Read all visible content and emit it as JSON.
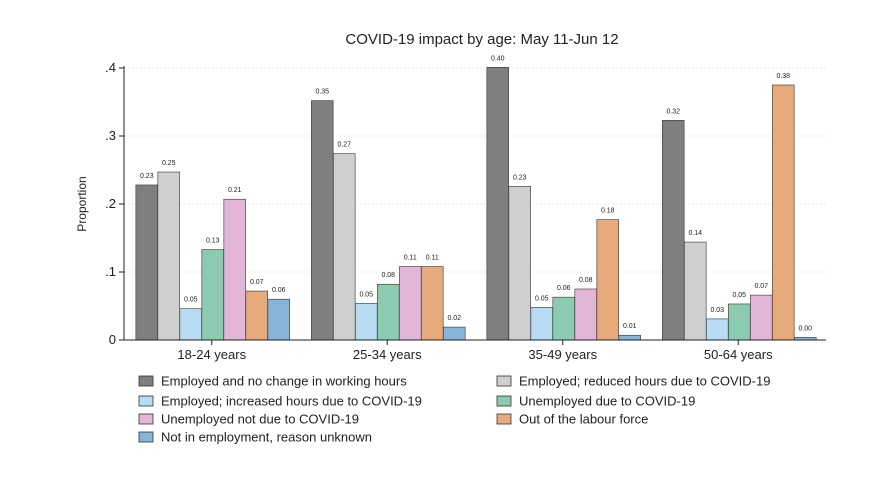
{
  "chart_data": {
    "type": "bar",
    "title": "COVID-19 impact by age: May 11-Jun 12",
    "xlabel": "",
    "ylabel": "Proportion",
    "ylim": [
      0,
      0.4
    ],
    "yticks": [
      0,
      0.1,
      0.2,
      0.3,
      0.4
    ],
    "ytick_labels": [
      "0",
      ".1",
      ".2",
      ".3",
      ".4"
    ],
    "grid": true,
    "legend_position": "bottom",
    "categories": [
      "18-24 years",
      "25-34 years",
      "35-49 years",
      "50-64 years"
    ],
    "series": [
      {
        "name": "Employed and no change in working hours",
        "color": "#7f7f7f",
        "values": [
          0.228,
          0.352,
          0.401,
          0.323
        ],
        "labels": [
          "0.23",
          "0.35",
          "0.40",
          "0.32"
        ]
      },
      {
        "name": "Employed; reduced hours due to COVID-19",
        "color": "#cfcfcf",
        "values": [
          0.247,
          0.274,
          0.226,
          0.144
        ],
        "labels": [
          "0.25",
          "0.27",
          "0.23",
          "0.14"
        ]
      },
      {
        "name": "Employed; increased hours due to COVID-19",
        "color": "#b7dcf3",
        "values": [
          0.046,
          0.054,
          0.048,
          0.031
        ],
        "labels": [
          "0.05",
          "0.05",
          "0.05",
          "0.03"
        ]
      },
      {
        "name": "Unemployed due to COVID-19",
        "color": "#8ccbb0",
        "values": [
          0.133,
          0.082,
          0.063,
          0.053
        ],
        "labels": [
          "0.13",
          "0.08",
          "0.06",
          "0.05"
        ]
      },
      {
        "name": "Unemployed not due to COVID-19",
        "color": "#e3b5d7",
        "values": [
          0.207,
          0.108,
          0.075,
          0.066
        ],
        "labels": [
          "0.21",
          "0.11",
          "0.08",
          "0.07"
        ]
      },
      {
        "name": "Out of the labour force",
        "color": "#e7aa7a",
        "values": [
          0.072,
          0.108,
          0.177,
          0.375
        ],
        "labels": [
          "0.07",
          "0.11",
          "0.18",
          "0.38"
        ]
      },
      {
        "name": "Not in employment, reason unknown",
        "color": "#86b5d9",
        "values": [
          0.06,
          0.019,
          0.007,
          0.004
        ],
        "labels": [
          "0.06",
          "0.02",
          "0.01",
          "0.00"
        ]
      }
    ],
    "legend_order": [
      0,
      1,
      2,
      3,
      4,
      5,
      6
    ]
  }
}
